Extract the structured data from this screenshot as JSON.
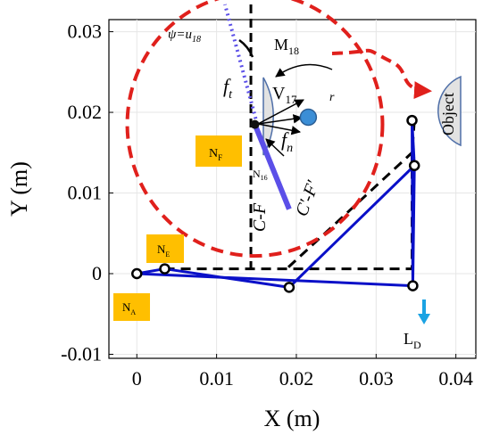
{
  "chart_data": {
    "type": "scatter",
    "xlabel": "X (m)",
    "ylabel": "Y (m)",
    "xlim": [
      -0.0035,
      0.0425
    ],
    "ylim": [
      -0.0105,
      0.0315
    ],
    "x_ticks": [
      {
        "value": 0,
        "label": "0"
      },
      {
        "value": 0.01,
        "label": "0.01"
      },
      {
        "value": 0.02,
        "label": "0.02"
      },
      {
        "value": 0.03,
        "label": "0.03"
      },
      {
        "value": 0.04,
        "label": "0.04"
      }
    ],
    "y_ticks": [
      {
        "value": -0.01,
        "label": "-0.01"
      },
      {
        "value": 0,
        "label": "0"
      },
      {
        "value": 0.01,
        "label": "0.01"
      },
      {
        "value": 0.02,
        "label": "0.02"
      },
      {
        "value": 0.03,
        "label": "0.03"
      }
    ],
    "grid": true,
    "series": [
      {
        "role": "mechanism links",
        "color": "#0a10c8",
        "points": [
          [
            0.0,
            0.0
          ],
          [
            0.0035,
            0.0006
          ],
          [
            0.0191,
            -0.0017
          ],
          [
            0.0346,
            -0.0015
          ],
          [
            0.0348,
            0.0134
          ],
          [
            0.0345,
            0.019
          ]
        ],
        "segments": [
          [
            0,
            1
          ],
          [
            0,
            3
          ],
          [
            1,
            2
          ],
          [
            2,
            4
          ],
          [
            3,
            4
          ],
          [
            4,
            5
          ],
          [
            3,
            5
          ]
        ]
      },
      {
        "role": "dashed reference",
        "color": "#000000",
        "points": [
          [
            0.0035,
            0.0006
          ],
          [
            0.019,
            0.0006
          ],
          [
            0.0345,
            0.0006
          ],
          [
            0.0345,
            0.015
          ],
          [
            0.0348,
            0.019
          ],
          [
            0.019,
            0.0008
          ]
        ]
      }
    ],
    "joint": [
      0.0148,
      0.0185
    ],
    "link_end": [
      0.0191,
      0.008
    ],
    "pivot": [
      0.0215,
      0.0194
    ],
    "vertical_line_x": 0.0143,
    "dashed_circle": {
      "center": [
        0.0148,
        0.0185
      ],
      "radius_x": 0.016,
      "radius_y": 0.0163
    },
    "object_center": [
      0.0373,
      0.0193
    ],
    "labels": {
      "psi": "ψ=u",
      "psi_sub": "18",
      "m18": "M",
      "m18_sub": "18",
      "ft": "f",
      "ft_sub": "t",
      "v17": "V",
      "v17_sub": "17",
      "r": "r",
      "fn": "f",
      "fn_sub": "n",
      "nf": "N",
      "nf_sub": "F",
      "n16": "N",
      "n16_sub": "16",
      "cf": "C-F",
      "cfprime": "C'-F'",
      "ne": "N",
      "ne_sub": "E",
      "na": "N",
      "na_sub": "A",
      "ld": "L",
      "ld_sub": "D",
      "object": "Object"
    },
    "colors": {
      "links": "#0a10c8",
      "tool": "#5b4fe8",
      "circle": "#e0201c",
      "label_box": "#ffbf00",
      "semicircle_fill": "#e2e2e2",
      "semicircle_stroke": "#4f6fa8",
      "pivot": "#3b8ed6",
      "ld_arrow": "#1ba3e3"
    }
  }
}
